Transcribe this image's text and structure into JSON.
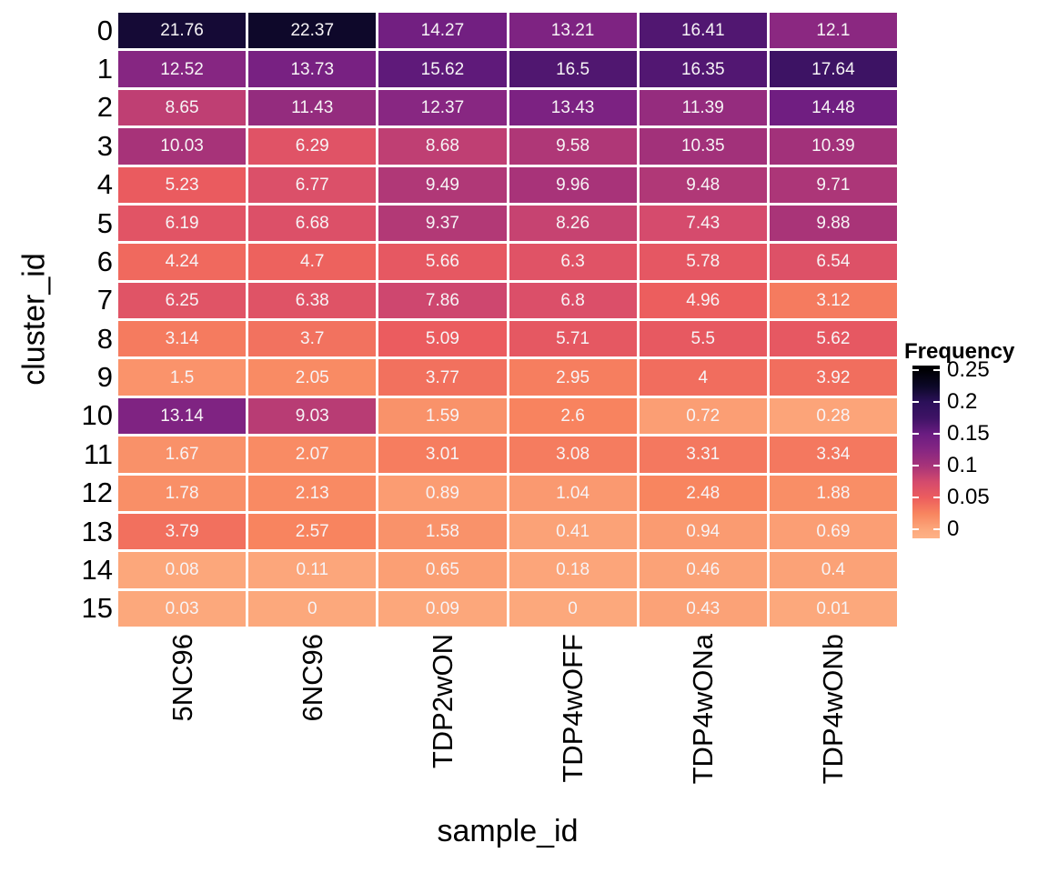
{
  "figure": {
    "background": "#FFFFFF",
    "text_color": "#000000",
    "cell_text_color": "#FFFFFF"
  },
  "chart_data": {
    "type": "heatmap",
    "title": "",
    "xlabel": "sample_id",
    "ylabel": "cluster_id",
    "columns": [
      "5NC96",
      "6NC96",
      "TDP2wON",
      "TDP4wOFF",
      "TDP4wONa",
      "TDP4wONb"
    ],
    "rows": [
      "0",
      "1",
      "2",
      "3",
      "4",
      "5",
      "6",
      "7",
      "8",
      "9",
      "10",
      "11",
      "12",
      "13",
      "14",
      "15"
    ],
    "values": [
      [
        21.76,
        22.37,
        14.27,
        13.21,
        16.41,
        12.1
      ],
      [
        12.52,
        13.73,
        15.62,
        16.5,
        16.35,
        17.64
      ],
      [
        8.65,
        11.43,
        12.37,
        13.43,
        11.39,
        14.48
      ],
      [
        10.03,
        6.29,
        8.68,
        9.58,
        10.35,
        10.39
      ],
      [
        5.23,
        6.77,
        9.49,
        9.96,
        9.48,
        9.71
      ],
      [
        6.19,
        6.68,
        9.37,
        8.26,
        7.43,
        9.88
      ],
      [
        4.24,
        4.7,
        5.66,
        6.3,
        5.78,
        6.54
      ],
      [
        6.25,
        6.38,
        7.86,
        6.8,
        4.96,
        3.12
      ],
      [
        3.14,
        3.7,
        5.09,
        5.71,
        5.5,
        5.62
      ],
      [
        1.5,
        2.05,
        3.77,
        2.95,
        4,
        3.92
      ],
      [
        13.14,
        9.03,
        1.59,
        2.6,
        0.72,
        0.28
      ],
      [
        1.67,
        2.07,
        3.01,
        3.08,
        3.31,
        3.34
      ],
      [
        1.78,
        2.13,
        0.89,
        1.04,
        2.48,
        1.88
      ],
      [
        3.79,
        2.57,
        1.58,
        0.41,
        0.94,
        0.69
      ],
      [
        0.08,
        0.11,
        0.65,
        0.18,
        0.46,
        0.4
      ],
      [
        0.03,
        0,
        0.09,
        0,
        0.43,
        0.01
      ]
    ],
    "values_are_percent_of_frequency": true,
    "legend": {
      "title": "Frequency",
      "tick_labels": [
        "0.25",
        "0.2",
        "0.15",
        "0.1",
        "0.05",
        "0"
      ],
      "tick_values": [
        0.25,
        0.2,
        0.15,
        0.1,
        0.05,
        0
      ],
      "top_value": 0.2572,
      "bottom_value": -0.0136
    },
    "colormap": {
      "name": "magma-reversed",
      "stops": [
        {
          "f": -0.015,
          "color": "#FEB287"
        },
        {
          "f": 0.0,
          "color": "#FCA87C"
        },
        {
          "f": 0.025,
          "color": "#F8855F"
        },
        {
          "f": 0.05,
          "color": "#EC5D5E"
        },
        {
          "f": 0.075,
          "color": "#D44A6D"
        },
        {
          "f": 0.1,
          "color": "#A73379"
        },
        {
          "f": 0.125,
          "color": "#862682"
        },
        {
          "f": 0.15,
          "color": "#6A1C81"
        },
        {
          "f": 0.175,
          "color": "#3E1365"
        },
        {
          "f": 0.2,
          "color": "#2B1059"
        },
        {
          "f": 0.225,
          "color": "#0C0827"
        },
        {
          "f": 0.25,
          "color": "#000004"
        }
      ]
    }
  }
}
